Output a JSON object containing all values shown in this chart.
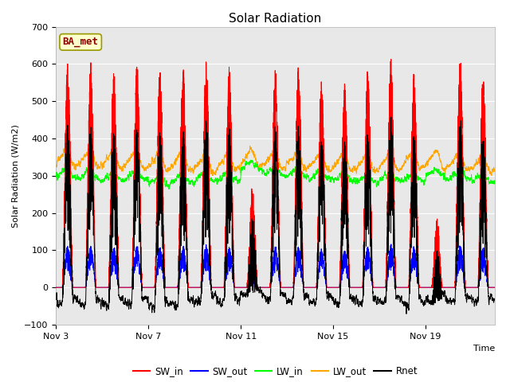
{
  "title": "Solar Radiation",
  "ylabel": "Solar Radiation (W/m2)",
  "xlabel": "Time",
  "ylim": [
    -100,
    700
  ],
  "yticks": [
    -100,
    0,
    100,
    200,
    300,
    400,
    500,
    600,
    700
  ],
  "x_tick_labels": [
    "Nov 3",
    "Nov 7",
    "Nov 11",
    "Nov 15",
    "Nov 19"
  ],
  "annotation_text": "BA_met",
  "legend_labels": [
    "SW_in",
    "SW_out",
    "LW_in",
    "LW_out",
    "Rnet"
  ],
  "line_colors": {
    "SW_in": "#ff0000",
    "SW_out": "#0000ff",
    "LW_in": "#00ff00",
    "LW_out": "#ffa500",
    "Rnet": "#000000"
  },
  "background_color": "#e8e8e8",
  "n_days": 19,
  "points_per_day": 288,
  "title_fontsize": 11,
  "annotation_fontsize": 9,
  "grid_color": "#ffffff",
  "grid_linewidth": 0.8,
  "tick_fontsize": 8,
  "peaks_SW_in": [
    605,
    600,
    595,
    600,
    595,
    600,
    610,
    590,
    315,
    590,
    600,
    560,
    555,
    590,
    620,
    580,
    210,
    625,
    575
  ]
}
